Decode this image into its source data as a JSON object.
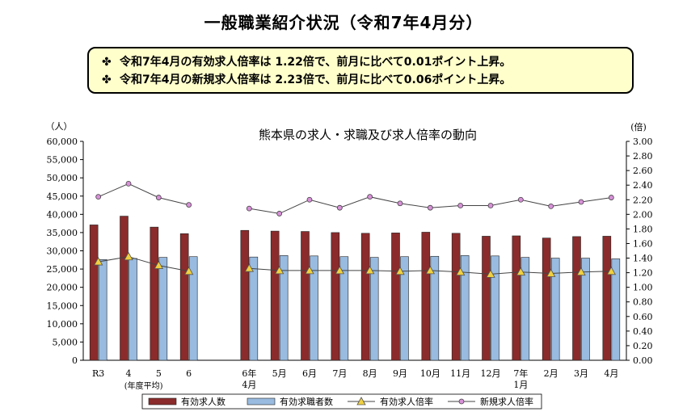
{
  "page": {
    "title": "一般職業紹介状況（令和7年4月分）",
    "notice_mark": "✤",
    "notices": [
      "令和7年4月の有効求人倍率は 1.22倍で、前月に比べて0.01ポイント上昇。",
      "令和7年4月の新規求人倍率は 2.23倍で、前月に比べて0.06ポイント上昇。"
    ]
  },
  "colors": {
    "offers_bar": "#8b2b2b",
    "seekers_bar": "#99bbe0",
    "effective_ratio_line": "#444444",
    "effective_ratio_marker": "#f0d040",
    "new_ratio_marker": "#d890d8",
    "new_ratio_line": "#444444"
  },
  "chart_data": {
    "type": "bar",
    "title": "熊本県の求人・求職及び求人倍率の動向",
    "y_left_unit": "（人）",
    "y_right_unit": "(倍)",
    "y_left_range": [
      0,
      60000
    ],
    "y_left_ticks": [
      "0",
      "5,000",
      "10,000",
      "15,000",
      "20,000",
      "25,000",
      "30,000",
      "35,000",
      "40,000",
      "45,000",
      "50,000",
      "55,000",
      "60,000"
    ],
    "y_right_range": [
      0,
      3.0
    ],
    "y_right_ticks": [
      "0.00",
      "0.20",
      "0.40",
      "0.60",
      "0.80",
      "1.00",
      "1.20",
      "1.40",
      "1.60",
      "1.80",
      "2.00",
      "2.20",
      "2.40",
      "2.60",
      "2.80",
      "3.00"
    ],
    "annual_note": "(年度平均)",
    "categories": [
      {
        "label": "R3",
        "sub": ""
      },
      {
        "label": "4",
        "sub": ""
      },
      {
        "label": "5",
        "sub": ""
      },
      {
        "label": "6",
        "sub": ""
      },
      {
        "label": "6年",
        "sub": "4月"
      },
      {
        "label": "5月",
        "sub": ""
      },
      {
        "label": "6月",
        "sub": ""
      },
      {
        "label": "7月",
        "sub": ""
      },
      {
        "label": "8月",
        "sub": ""
      },
      {
        "label": "9月",
        "sub": ""
      },
      {
        "label": "10月",
        "sub": ""
      },
      {
        "label": "11月",
        "sub": ""
      },
      {
        "label": "12月",
        "sub": ""
      },
      {
        "label": "7年",
        "sub": "1月"
      },
      {
        "label": "2月",
        "sub": ""
      },
      {
        "label": "3月",
        "sub": ""
      },
      {
        "label": "4月",
        "sub": ""
      }
    ],
    "series": [
      {
        "name": "有効求人数",
        "kind": "bar",
        "axis": "left",
        "values": [
          37100,
          39500,
          36500,
          34700,
          35600,
          35400,
          35300,
          35000,
          34800,
          34900,
          35100,
          34800,
          34000,
          34100,
          33500,
          33900,
          34000
        ]
      },
      {
        "name": "有効求職者数",
        "kind": "bar",
        "axis": "left",
        "values": [
          27600,
          27900,
          28200,
          28400,
          28300,
          28700,
          28600,
          28400,
          28200,
          28400,
          28500,
          28700,
          28600,
          28200,
          28000,
          28000,
          27800
        ]
      },
      {
        "name": "有効求人倍率",
        "kind": "line",
        "axis": "right",
        "marker": "triangle",
        "values": [
          1.35,
          1.42,
          1.3,
          1.22,
          1.26,
          1.23,
          1.23,
          1.23,
          1.23,
          1.22,
          1.23,
          1.21,
          1.18,
          1.21,
          1.19,
          1.21,
          1.22
        ]
      },
      {
        "name": "新規求人倍率",
        "kind": "line",
        "axis": "right",
        "marker": "circle",
        "values": [
          2.24,
          2.42,
          2.23,
          2.13,
          2.08,
          2.01,
          2.2,
          2.09,
          2.24,
          2.15,
          2.09,
          2.12,
          2.12,
          2.2,
          2.11,
          2.17,
          2.23
        ]
      }
    ],
    "legend_position": "bottom"
  }
}
